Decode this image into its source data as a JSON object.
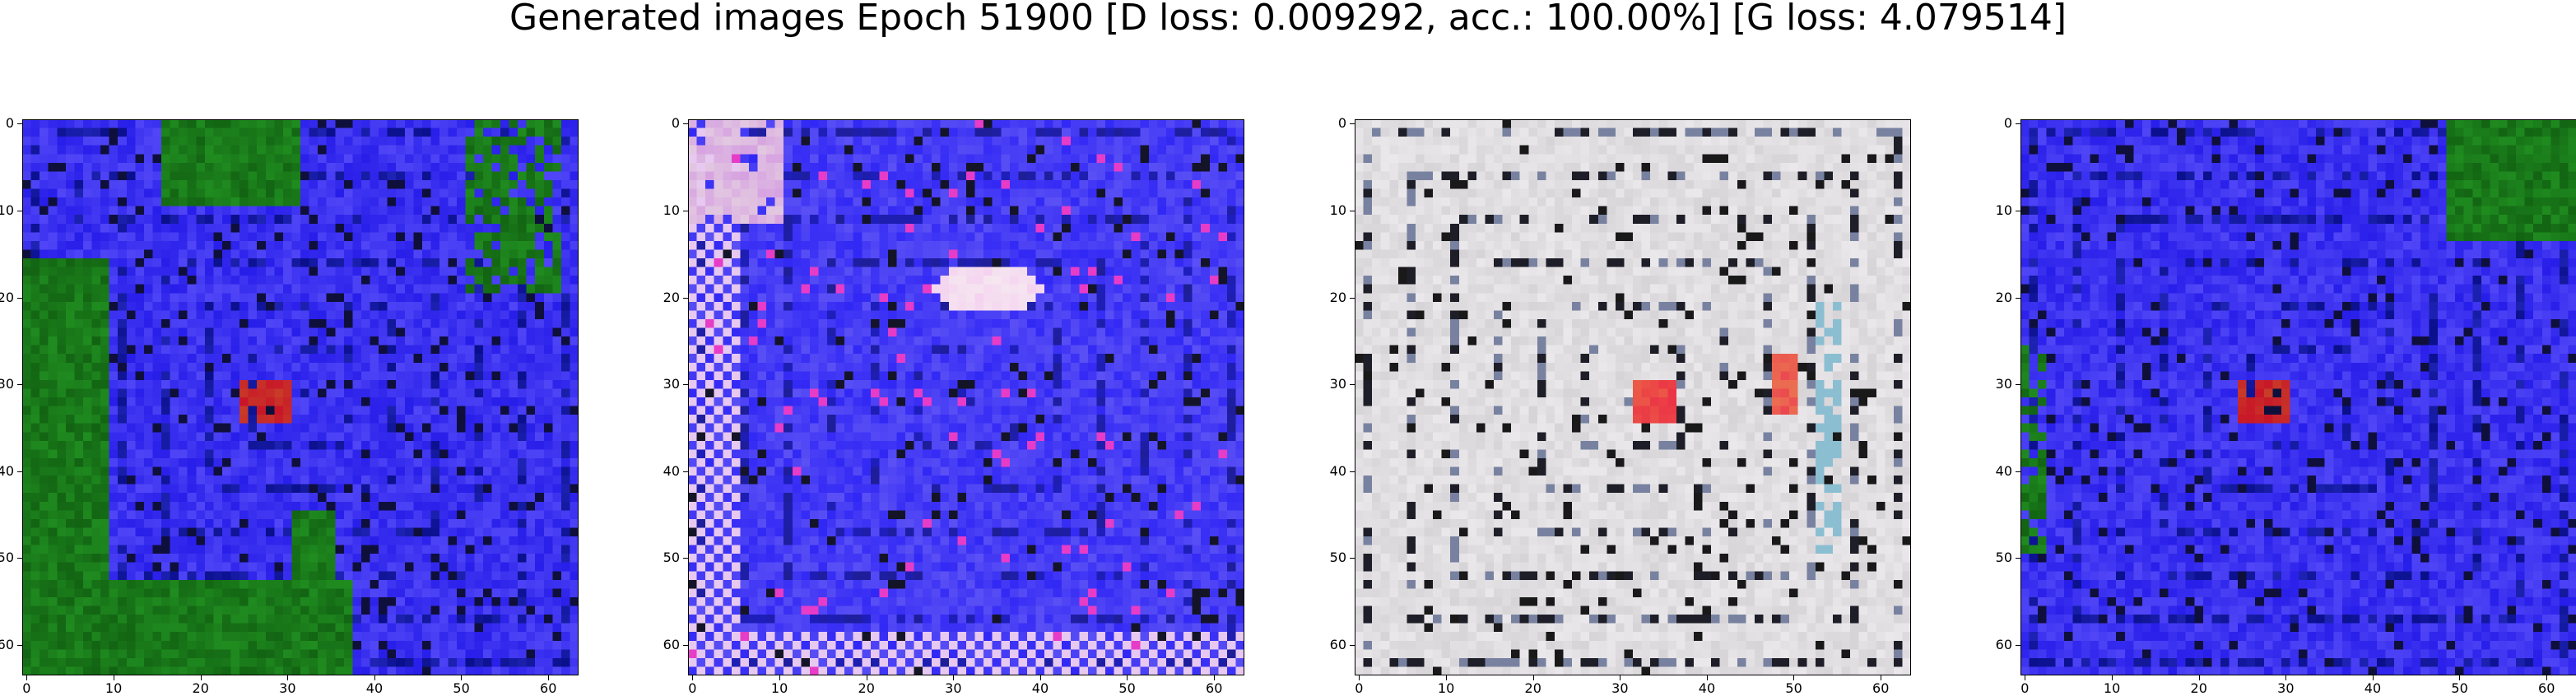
{
  "title": "Generated images Epoch 51900 [D loss: 0.009292, acc.: 100.00%] [G loss: 4.079514]",
  "axis": {
    "xticks": [
      "0",
      "10",
      "20",
      "30",
      "40",
      "50",
      "60"
    ],
    "yticks": [
      "0",
      "10",
      "20",
      "30",
      "40",
      "50",
      "60"
    ]
  },
  "panels": [
    {
      "name": "generated-image-1",
      "style": "blue-green",
      "base": "#3a35f0",
      "secondary": "#1f7f1f"
    },
    {
      "name": "generated-image-2",
      "style": "blue-checker",
      "base": "#3f3af5",
      "secondary": "#f2d8f0"
    },
    {
      "name": "generated-image-3",
      "style": "gray-beige",
      "base": "#e6e3e6",
      "secondary": "#e63b3b"
    },
    {
      "name": "generated-image-4",
      "style": "blue-green-corner",
      "base": "#3a37f2",
      "secondary": "#1f7f1f"
    }
  ]
}
